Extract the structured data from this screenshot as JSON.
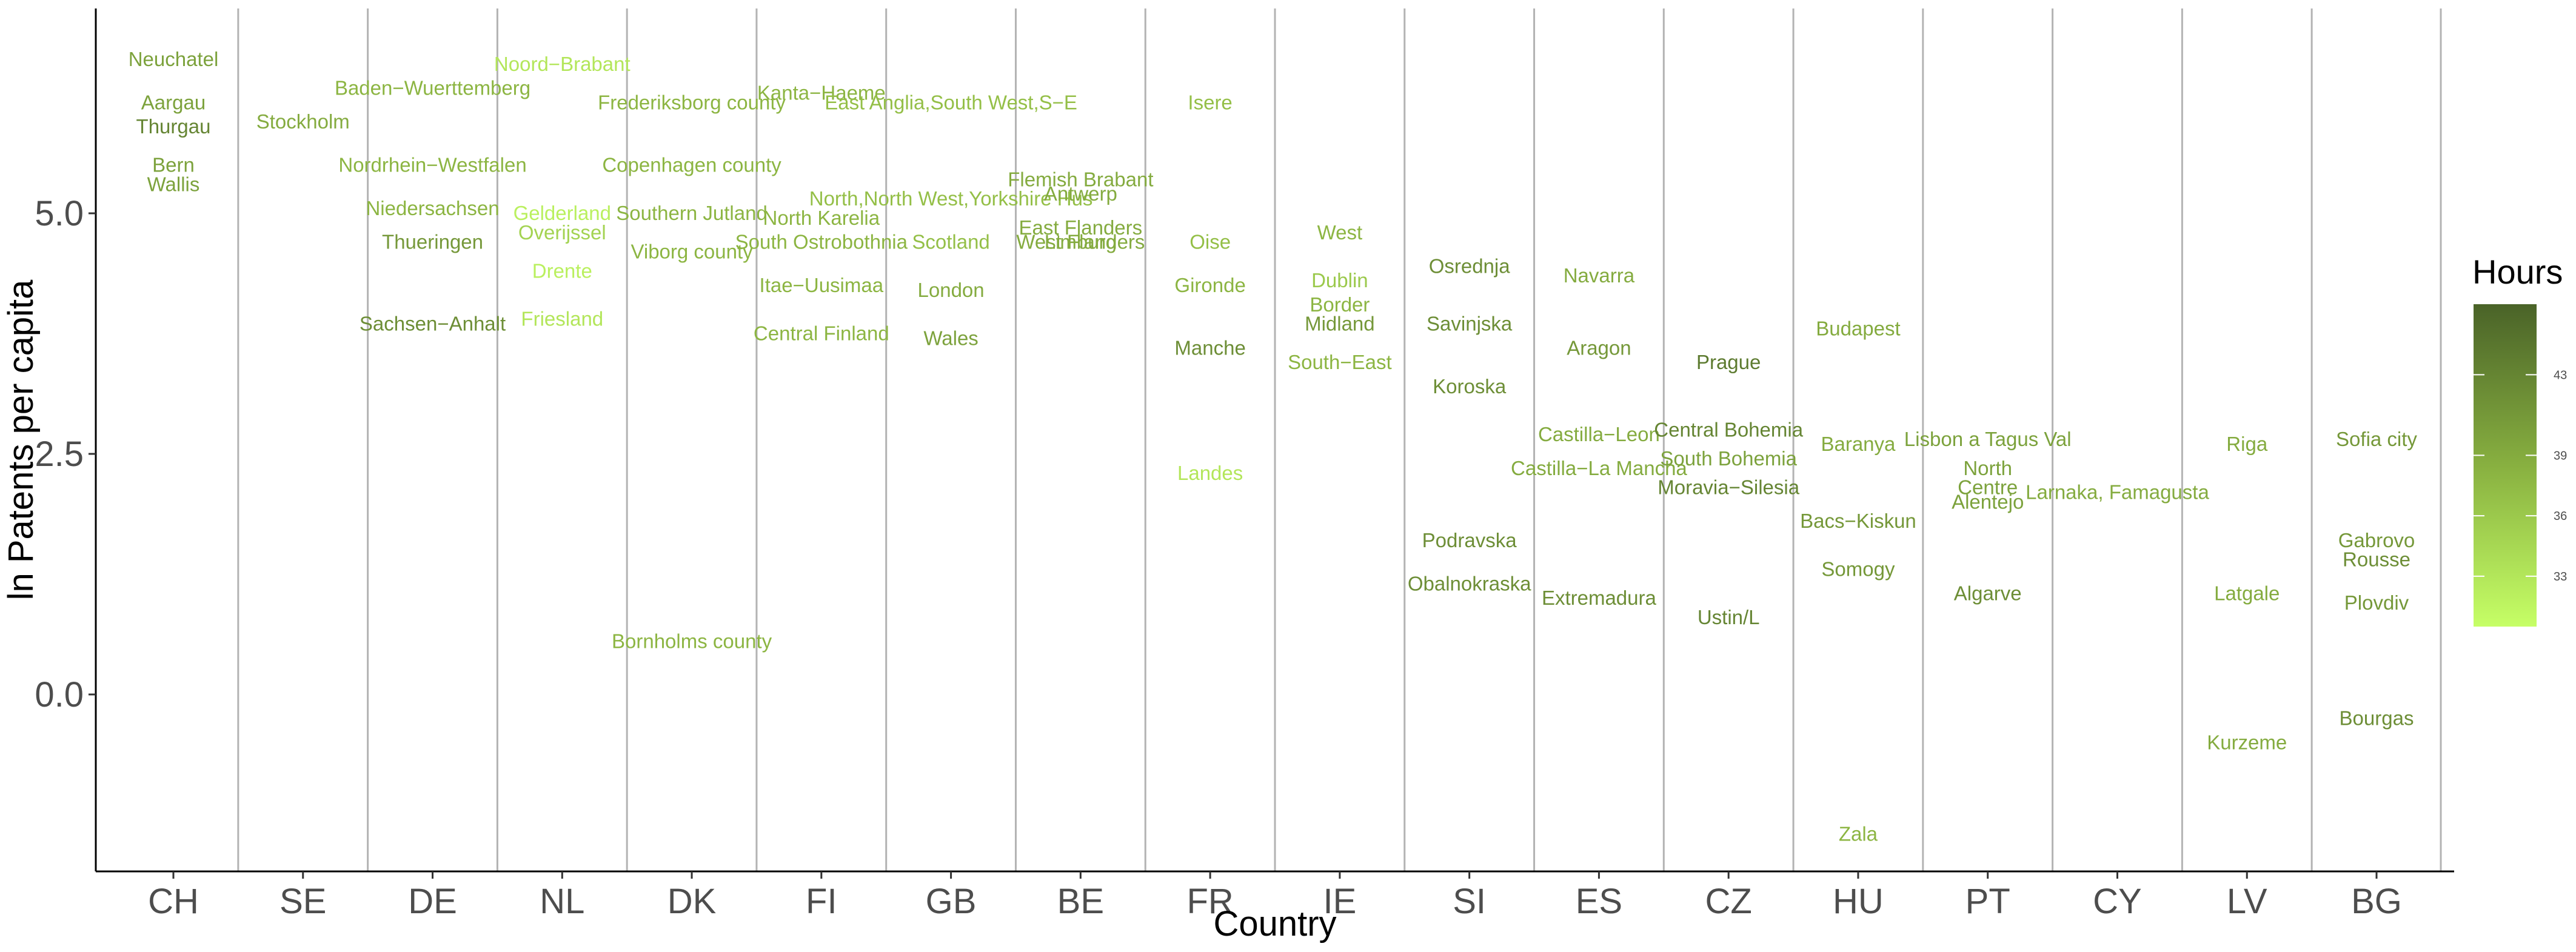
{
  "chart_data": {
    "type": "scatter",
    "xlabel": "Country",
    "ylabel": "ln Patents per capita",
    "ylim": [
      -2.0,
      7.0
    ],
    "yticks": [
      0.0,
      2.5,
      5.0
    ],
    "ytick_labels": [
      "0.0",
      "2.5",
      "5.0"
    ],
    "categories": [
      "CH",
      "SE",
      "DE",
      "NL",
      "DK",
      "FI",
      "GB",
      "BE",
      "FR",
      "IE",
      "SI",
      "ES",
      "CZ",
      "HU",
      "PT",
      "CY",
      "LV",
      "BG"
    ],
    "grid": "vertical separators between countries",
    "legend": {
      "title": "Hours",
      "placement": "right",
      "ticks": [
        33,
        36,
        39,
        43
      ],
      "range": [
        30.5,
        46.5
      ],
      "low_color": "#c6ff66",
      "high_color": "#4a6328"
    },
    "points": [
      {
        "country": "CH",
        "label": "Neuchatel",
        "y": 6.6,
        "hours": 40
      },
      {
        "country": "CH",
        "label": "Aargau",
        "y": 6.15,
        "hours": 40
      },
      {
        "country": "CH",
        "label": "Thurgau",
        "y": 5.9,
        "hours": 43
      },
      {
        "country": "CH",
        "label": "Bern",
        "y": 5.5,
        "hours": 40
      },
      {
        "country": "CH",
        "label": "Wallis",
        "y": 5.3,
        "hours": 40
      },
      {
        "country": "SE",
        "label": "Stockholm",
        "y": 5.95,
        "hours": 39
      },
      {
        "country": "DE",
        "label": "Baden−Wuerttemberg",
        "y": 6.3,
        "hours": 38
      },
      {
        "country": "DE",
        "label": "Nordrhein−Westfalen",
        "y": 5.5,
        "hours": 38
      },
      {
        "country": "DE",
        "label": "Niedersachsen",
        "y": 5.05,
        "hours": 38
      },
      {
        "country": "DE",
        "label": "Thueringen",
        "y": 4.7,
        "hours": 41
      },
      {
        "country": "DE",
        "label": "Sachsen−Anhalt",
        "y": 3.85,
        "hours": 42
      },
      {
        "country": "NL",
        "label": "Noord−Brabant",
        "y": 6.55,
        "hours": 33
      },
      {
        "country": "NL",
        "label": "Gelderland",
        "y": 5.0,
        "hours": 32
      },
      {
        "country": "NL",
        "label": "Overijssel",
        "y": 4.8,
        "hours": 35
      },
      {
        "country": "NL",
        "label": "Drente",
        "y": 4.4,
        "hours": 32
      },
      {
        "country": "NL",
        "label": "Friesland",
        "y": 3.9,
        "hours": 33
      },
      {
        "country": "DK",
        "label": "Frederiksborg county",
        "y": 6.15,
        "hours": 38
      },
      {
        "country": "DK",
        "label": "Copenhagen county",
        "y": 5.5,
        "hours": 38
      },
      {
        "country": "DK",
        "label": "Southern Jutland",
        "y": 5.0,
        "hours": 38
      },
      {
        "country": "DK",
        "label": "Viborg county",
        "y": 4.6,
        "hours": 38
      },
      {
        "country": "DK",
        "label": "Bornholms county",
        "y": 0.55,
        "hours": 38
      },
      {
        "country": "FI",
        "label": "Kanta−Haeme",
        "y": 6.25,
        "hours": 38
      },
      {
        "country": "FI",
        "label": "North Karelia",
        "y": 4.95,
        "hours": 38
      },
      {
        "country": "FI",
        "label": "South Ostrobothnia",
        "y": 4.7,
        "hours": 38
      },
      {
        "country": "FI",
        "label": "Itae−Uusimaa",
        "y": 4.25,
        "hours": 38
      },
      {
        "country": "FI",
        "label": "Central Finland",
        "y": 3.75,
        "hours": 38
      },
      {
        "country": "GB",
        "label": "East Anglia,South West,S−E",
        "y": 6.15,
        "hours": 37
      },
      {
        "country": "GB",
        "label": "North,North West,Yorkshire Hus",
        "y": 5.15,
        "hours": 37
      },
      {
        "country": "GB",
        "label": "Scotland",
        "y": 4.7,
        "hours": 37
      },
      {
        "country": "GB",
        "label": "London",
        "y": 4.2,
        "hours": 39
      },
      {
        "country": "GB",
        "label": "Wales",
        "y": 3.7,
        "hours": 40
      },
      {
        "country": "BE",
        "label": "Flemish Brabant",
        "y": 5.35,
        "hours": 39
      },
      {
        "country": "BE",
        "label": "Antwerp",
        "y": 5.2,
        "hours": 39
      },
      {
        "country": "BE",
        "label": "East Flanders",
        "y": 4.85,
        "hours": 39
      },
      {
        "country": "BE",
        "label": "West Flanders",
        "y": 4.7,
        "hours": 39
      },
      {
        "country": "BE",
        "label": "Limburg",
        "y": 4.7,
        "hours": 39
      },
      {
        "country": "FR",
        "label": "Isere",
        "y": 6.15,
        "hours": 37
      },
      {
        "country": "FR",
        "label": "Oise",
        "y": 4.7,
        "hours": 37
      },
      {
        "country": "FR",
        "label": "Gironde",
        "y": 4.25,
        "hours": 38
      },
      {
        "country": "FR",
        "label": "Manche",
        "y": 3.6,
        "hours": 42
      },
      {
        "country": "FR",
        "label": "Landes",
        "y": 2.3,
        "hours": 33
      },
      {
        "country": "IE",
        "label": "West",
        "y": 4.8,
        "hours": 38
      },
      {
        "country": "IE",
        "label": "Dublin",
        "y": 4.3,
        "hours": 36
      },
      {
        "country": "IE",
        "label": "Border",
        "y": 4.05,
        "hours": 38
      },
      {
        "country": "IE",
        "label": "Midland",
        "y": 3.85,
        "hours": 41
      },
      {
        "country": "IE",
        "label": "South−East",
        "y": 3.45,
        "hours": 38
      },
      {
        "country": "SI",
        "label": "Osrednja",
        "y": 4.45,
        "hours": 42
      },
      {
        "country": "SI",
        "label": "Savinjska",
        "y": 3.85,
        "hours": 42
      },
      {
        "country": "SI",
        "label": "Koroska",
        "y": 3.2,
        "hours": 42
      },
      {
        "country": "SI",
        "label": "Podravska",
        "y": 1.6,
        "hours": 42
      },
      {
        "country": "SI",
        "label": "Obalnokraska",
        "y": 1.15,
        "hours": 42
      },
      {
        "country": "ES",
        "label": "Navarra",
        "y": 4.35,
        "hours": 39
      },
      {
        "country": "ES",
        "label": "Aragon",
        "y": 3.6,
        "hours": 41
      },
      {
        "country": "ES",
        "label": "Castilla−Leon",
        "y": 2.7,
        "hours": 39
      },
      {
        "country": "ES",
        "label": "Castilla−La Mancha",
        "y": 2.35,
        "hours": 39
      },
      {
        "country": "ES",
        "label": "Extremadura",
        "y": 1.0,
        "hours": 42
      },
      {
        "country": "CZ",
        "label": "Prague",
        "y": 3.45,
        "hours": 44
      },
      {
        "country": "CZ",
        "label": "Central Bohemia",
        "y": 2.75,
        "hours": 43
      },
      {
        "country": "CZ",
        "label": "South Bohemia",
        "y": 2.45,
        "hours": 40
      },
      {
        "country": "CZ",
        "label": "Moravia−Silesia",
        "y": 2.15,
        "hours": 43
      },
      {
        "country": "CZ",
        "label": "Ustin/L",
        "y": 0.8,
        "hours": 43
      },
      {
        "country": "HU",
        "label": "Budapest",
        "y": 3.8,
        "hours": 39
      },
      {
        "country": "HU",
        "label": "Baranya",
        "y": 2.6,
        "hours": 39
      },
      {
        "country": "HU",
        "label": "Bacs−Kiskun",
        "y": 1.8,
        "hours": 41
      },
      {
        "country": "HU",
        "label": "Somogy",
        "y": 1.3,
        "hours": 41
      },
      {
        "country": "HU",
        "label": "Zala",
        "y": -1.45,
        "hours": 38
      },
      {
        "country": "PT",
        "label": "Lisbon a Tagus Val",
        "y": 2.65,
        "hours": 40
      },
      {
        "country": "PT",
        "label": "North",
        "y": 2.35,
        "hours": 40
      },
      {
        "country": "PT",
        "label": "Centre",
        "y": 2.15,
        "hours": 40
      },
      {
        "country": "PT",
        "label": "Alentejo",
        "y": 2.0,
        "hours": 40
      },
      {
        "country": "PT",
        "label": "Algarve",
        "y": 1.05,
        "hours": 42
      },
      {
        "country": "CY",
        "label": "Larnaka, Famagusta",
        "y": 2.1,
        "hours": 39
      },
      {
        "country": "LV",
        "label": "Riga",
        "y": 2.6,
        "hours": 39
      },
      {
        "country": "LV",
        "label": "Latgale",
        "y": 1.05,
        "hours": 39
      },
      {
        "country": "LV",
        "label": "Kurzeme",
        "y": -0.5,
        "hours": 39
      },
      {
        "country": "BG",
        "label": "Sofia city",
        "y": 2.65,
        "hours": 41
      },
      {
        "country": "BG",
        "label": "Gabrovo",
        "y": 1.6,
        "hours": 41
      },
      {
        "country": "BG",
        "label": "Rousse",
        "y": 1.4,
        "hours": 42
      },
      {
        "country": "BG",
        "label": "Plovdiv",
        "y": 0.95,
        "hours": 41
      },
      {
        "country": "BG",
        "label": "Bourgas",
        "y": -0.25,
        "hours": 42
      }
    ]
  }
}
